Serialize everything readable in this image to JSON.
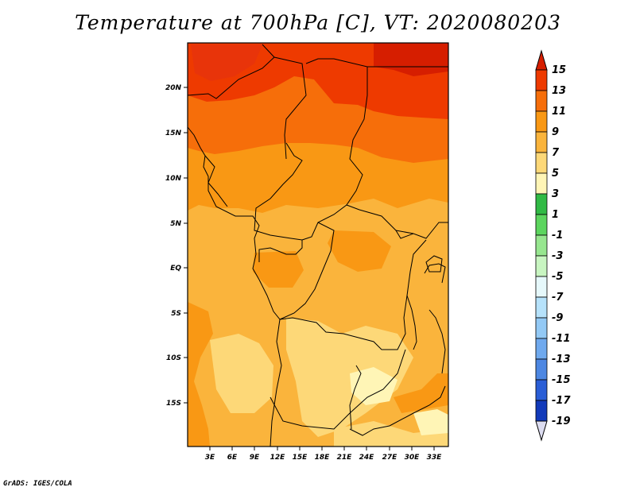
{
  "title": "Temperature at 700hPa [C], VT: 2020080203",
  "credit": "GrADS: IGES/COLA",
  "map": {
    "lat_labels": [
      "20N",
      "15N",
      "10N",
      "5N",
      "EQ",
      "5S",
      "10S",
      "15S"
    ],
    "lon_labels": [
      "3E",
      "6E",
      "9E",
      "12E",
      "15E",
      "18E",
      "21E",
      "24E",
      "27E",
      "30E",
      "33E"
    ]
  },
  "colorbar": {
    "labels": [
      "15",
      "13",
      "11",
      "9",
      "7",
      "5",
      "3",
      "1",
      "-1",
      "-3",
      "-5",
      "-7",
      "-9",
      "-11",
      "-13",
      "-15",
      "-17",
      "-19"
    ],
    "colors": [
      "#d61e00",
      "#ee3a00",
      "#f66e0a",
      "#f99814",
      "#fab43c",
      "#fdd878",
      "#fff5b6",
      "#31ba45",
      "#5cd55e",
      "#97e68f",
      "#c8f5c1",
      "#e6f8fb",
      "#b6e2fb",
      "#93c9f5",
      "#6fa9ee",
      "#4d87e2",
      "#2a5ed6",
      "#123aba",
      "#0a1a8c",
      "#0a0a6e"
    ],
    "top_arrow_color": "#d61e00",
    "bottom_arrow_color": "#dcdcf0"
  }
}
